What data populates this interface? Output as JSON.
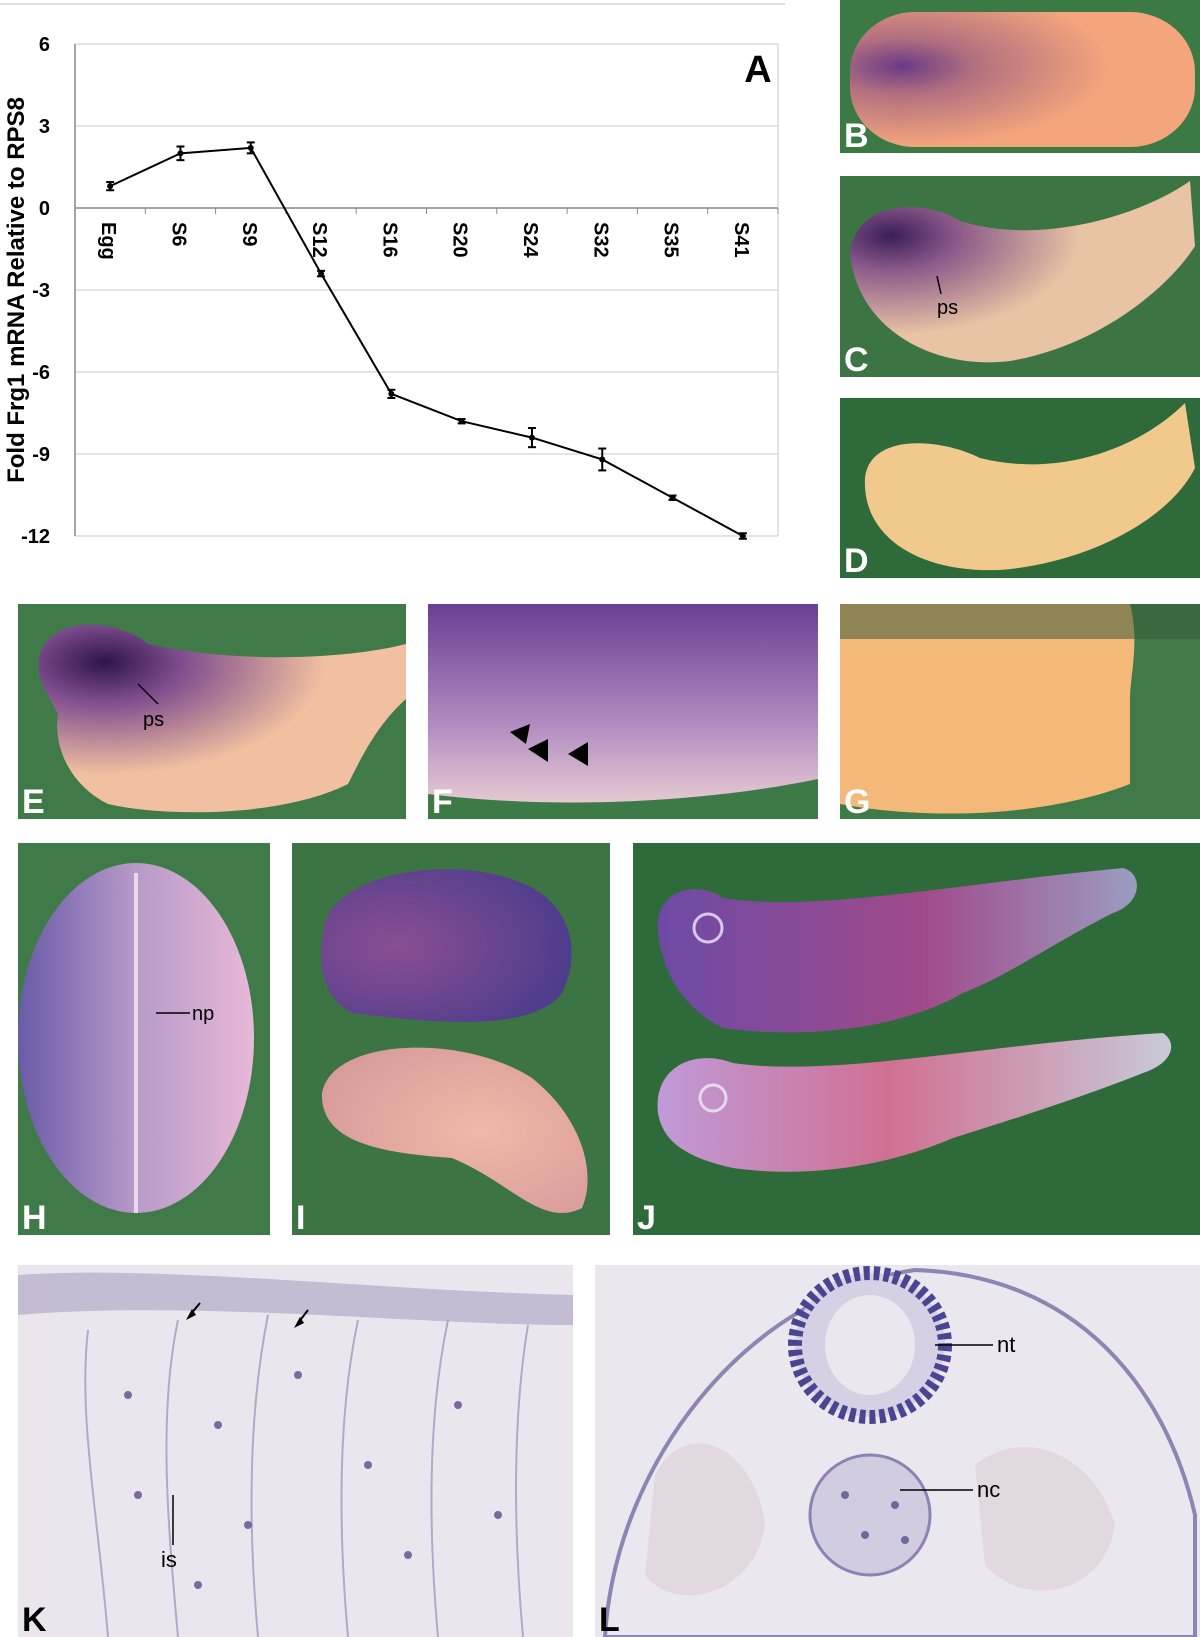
{
  "panels": {
    "A": "A",
    "B": "B",
    "C": "C",
    "D": "D",
    "E": "E",
    "F": "F",
    "G": "G",
    "H": "H",
    "I": "I",
    "J": "J",
    "K": "K",
    "L": "L"
  },
  "annotations": {
    "c_ps": "ps",
    "e_ps": "ps",
    "h_np": "np",
    "k_is": "is",
    "l_nt": "nt",
    "l_nc": "nc"
  },
  "colors": {
    "background_green": "#2f6a3a",
    "embryo_purple": "#5b2f7a",
    "embryo_tan": "#f0b886",
    "section_bg": "#e8e4ea"
  },
  "chart_data": {
    "type": "line",
    "panel_label": "A",
    "ylabel": "Fold Frg1 mRNA Relative to RPS8",
    "xlabel": "",
    "categories": [
      "Egg",
      "S6",
      "S9",
      "S12",
      "S16",
      "S20",
      "S24",
      "S32",
      "S35",
      "S41"
    ],
    "values": [
      0.8,
      2.0,
      2.2,
      -2.4,
      -6.8,
      -7.8,
      -8.4,
      -9.2,
      -10.6,
      -12.0
    ],
    "errors": [
      0.15,
      0.25,
      0.2,
      0.1,
      0.15,
      0.08,
      0.35,
      0.4,
      0.08,
      0.1
    ],
    "yticks": [
      6,
      3,
      0,
      -3,
      -6,
      -9,
      -12
    ],
    "ylim": [
      -12,
      6
    ],
    "grid": true
  }
}
